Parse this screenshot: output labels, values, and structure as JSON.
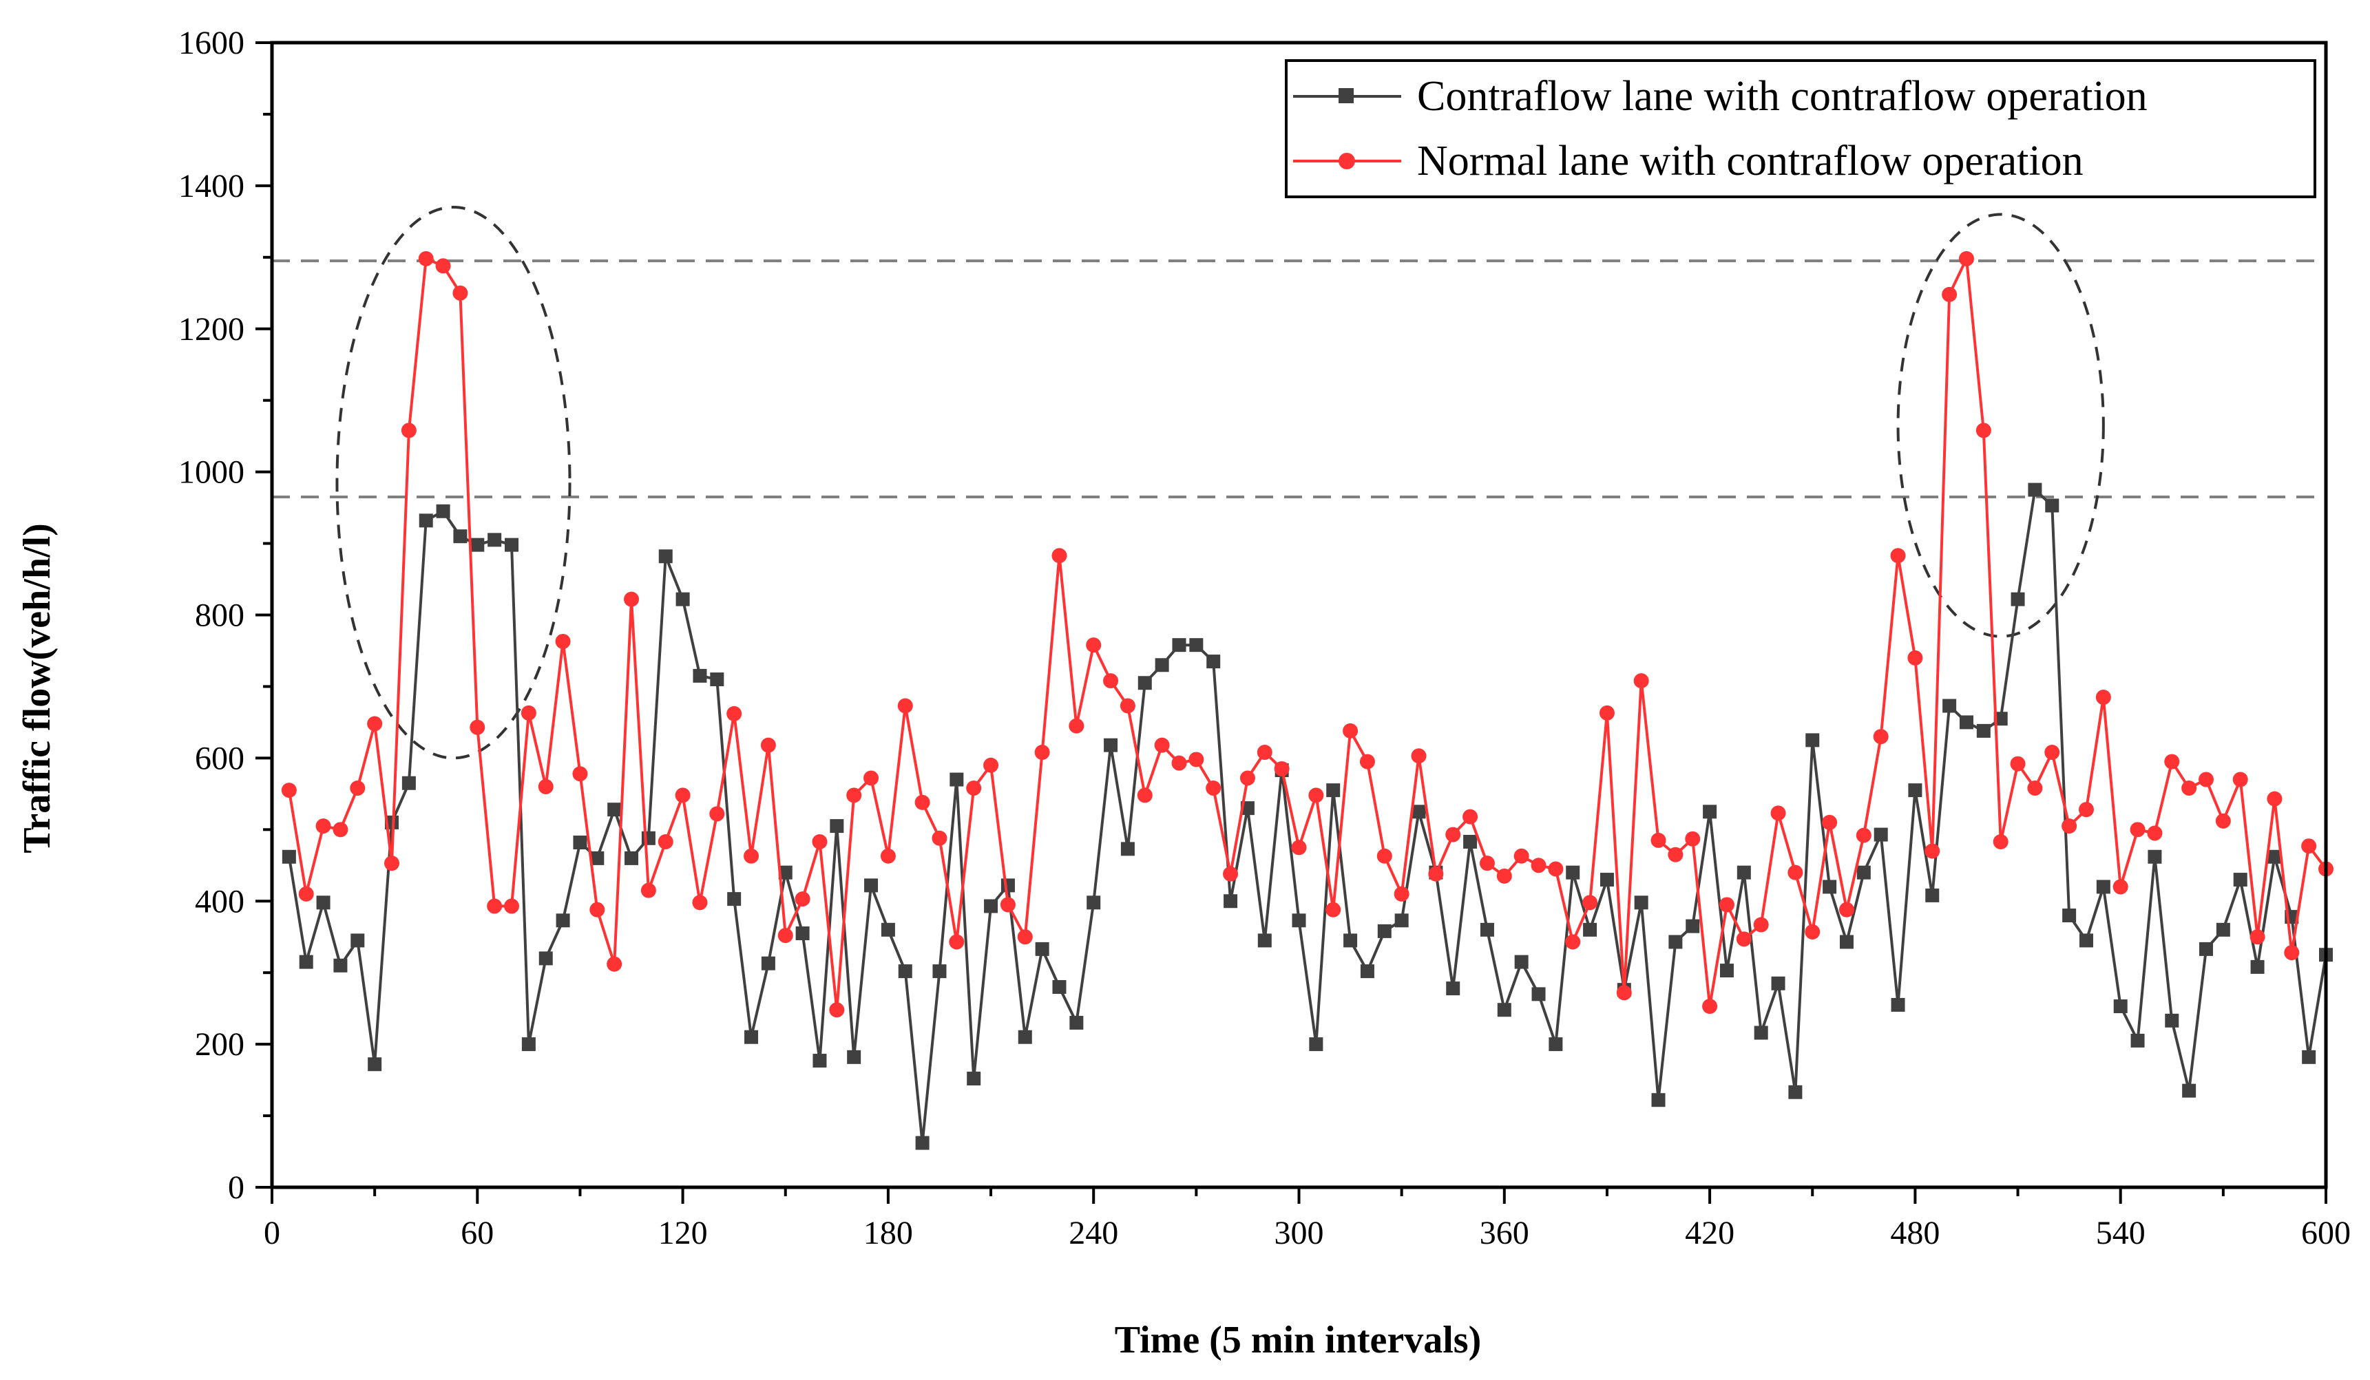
{
  "chart_data": {
    "type": "line",
    "title": "",
    "xlabel": "Time (5 min intervals)",
    "ylabel": "Traffic flow(veh/h/l)",
    "xlim": [
      0,
      600
    ],
    "ylim": [
      0,
      1600
    ],
    "x_ticks": [
      0,
      60,
      120,
      180,
      240,
      300,
      360,
      420,
      480,
      540,
      600
    ],
    "y_ticks": [
      0,
      200,
      400,
      600,
      800,
      1000,
      1200,
      1400,
      1600
    ],
    "reference_lines": [
      1295,
      965
    ],
    "highlight_ellipses": [
      {
        "center_x": 53,
        "center_y": 985,
        "radius_x": 34,
        "radius_y": 385
      },
      {
        "center_x": 505,
        "center_y": 1065,
        "radius_x": 30,
        "radius_y": 295
      }
    ],
    "legend_position": "top-right",
    "series": [
      {
        "name": "Contraflow lane with contraflow operation",
        "color": "#404040",
        "marker": "square",
        "x": [
          5,
          10,
          15,
          20,
          25,
          30,
          35,
          40,
          45,
          50,
          55,
          60,
          65,
          70,
          75,
          80,
          85,
          90,
          95,
          100,
          105,
          110,
          115,
          120,
          125,
          130,
          135,
          140,
          145,
          150,
          155,
          160,
          165,
          170,
          175,
          180,
          185,
          190,
          195,
          200,
          205,
          210,
          215,
          220,
          225,
          230,
          235,
          240,
          245,
          250,
          255,
          260,
          265,
          270,
          275,
          280,
          285,
          290,
          295,
          300,
          305,
          310,
          315,
          320,
          325,
          330,
          335,
          340,
          345,
          350,
          355,
          360,
          365,
          370,
          375,
          380,
          385,
          390,
          395,
          400,
          405,
          410,
          415,
          420,
          425,
          430,
          435,
          440,
          445,
          450,
          455,
          460,
          465,
          470,
          475,
          480,
          485,
          490,
          495,
          500,
          505,
          510,
          515,
          520,
          525,
          530,
          535,
          540,
          545,
          550,
          555,
          560,
          565,
          570,
          575,
          580,
          585,
          590,
          595,
          600
        ],
        "values": [
          462,
          315,
          398,
          310,
          345,
          172,
          510,
          565,
          932,
          945,
          910,
          898,
          905,
          898,
          200,
          320,
          373,
          482,
          460,
          528,
          460,
          488,
          882,
          822,
          715,
          710,
          403,
          210,
          313,
          440,
          355,
          177,
          505,
          182,
          422,
          360,
          302,
          62,
          302,
          570,
          152,
          393,
          422,
          210,
          333,
          280,
          230,
          398,
          618,
          473,
          705,
          730,
          758,
          758,
          735,
          400,
          530,
          345,
          583,
          373,
          200,
          555,
          345,
          302,
          358,
          373,
          525,
          440,
          278,
          483,
          360,
          248,
          315,
          270,
          200,
          440,
          360,
          430,
          276,
          398,
          122,
          343,
          365,
          525,
          303,
          440,
          216,
          285,
          133,
          625,
          420,
          343,
          440,
          493,
          255,
          555,
          408,
          673,
          650,
          638,
          655,
          822,
          975,
          953,
          380,
          345,
          420,
          253,
          205,
          462,
          233,
          135,
          333,
          360,
          430,
          308,
          462,
          378,
          182,
          325
        ]
      },
      {
        "name": "Normal lane with contraflow operation",
        "color": "#ff3333",
        "marker": "circle",
        "x": [
          5,
          10,
          15,
          20,
          25,
          30,
          35,
          40,
          45,
          50,
          55,
          60,
          65,
          70,
          75,
          80,
          85,
          90,
          95,
          100,
          105,
          110,
          115,
          120,
          125,
          130,
          135,
          140,
          145,
          150,
          155,
          160,
          165,
          170,
          175,
          180,
          185,
          190,
          195,
          200,
          205,
          210,
          215,
          220,
          225,
          230,
          235,
          240,
          245,
          250,
          255,
          260,
          265,
          270,
          275,
          280,
          285,
          290,
          295,
          300,
          305,
          310,
          315,
          320,
          325,
          330,
          335,
          340,
          345,
          350,
          355,
          360,
          365,
          370,
          375,
          380,
          385,
          390,
          395,
          400,
          405,
          410,
          415,
          420,
          425,
          430,
          435,
          440,
          445,
          450,
          455,
          460,
          465,
          470,
          475,
          480,
          485,
          490,
          495,
          500,
          505,
          510,
          515,
          520,
          525,
          530,
          535,
          540,
          545,
          550,
          555,
          560,
          565,
          570,
          575,
          580,
          585,
          590,
          595,
          600
        ],
        "values": [
          555,
          410,
          505,
          500,
          558,
          648,
          453,
          1058,
          1298,
          1288,
          1250,
          643,
          393,
          393,
          663,
          560,
          763,
          578,
          388,
          312,
          822,
          415,
          483,
          548,
          398,
          522,
          662,
          463,
          618,
          352,
          403,
          483,
          248,
          548,
          572,
          463,
          673,
          538,
          488,
          343,
          558,
          590,
          395,
          350,
          608,
          883,
          645,
          758,
          708,
          673,
          548,
          618,
          593,
          598,
          558,
          438,
          572,
          608,
          585,
          475,
          548,
          388,
          638,
          595,
          463,
          410,
          603,
          438,
          493,
          518,
          453,
          435,
          463,
          450,
          445,
          343,
          398,
          663,
          272,
          708,
          485,
          465,
          487,
          253,
          395,
          347,
          367,
          523,
          440,
          357,
          510,
          388,
          492,
          630,
          883,
          740,
          470,
          1248,
          1298,
          1058,
          483,
          592,
          558,
          608,
          505,
          528,
          685,
          420,
          500,
          495,
          595,
          558,
          570,
          512,
          570,
          350,
          543,
          328,
          477,
          445
        ]
      }
    ]
  }
}
